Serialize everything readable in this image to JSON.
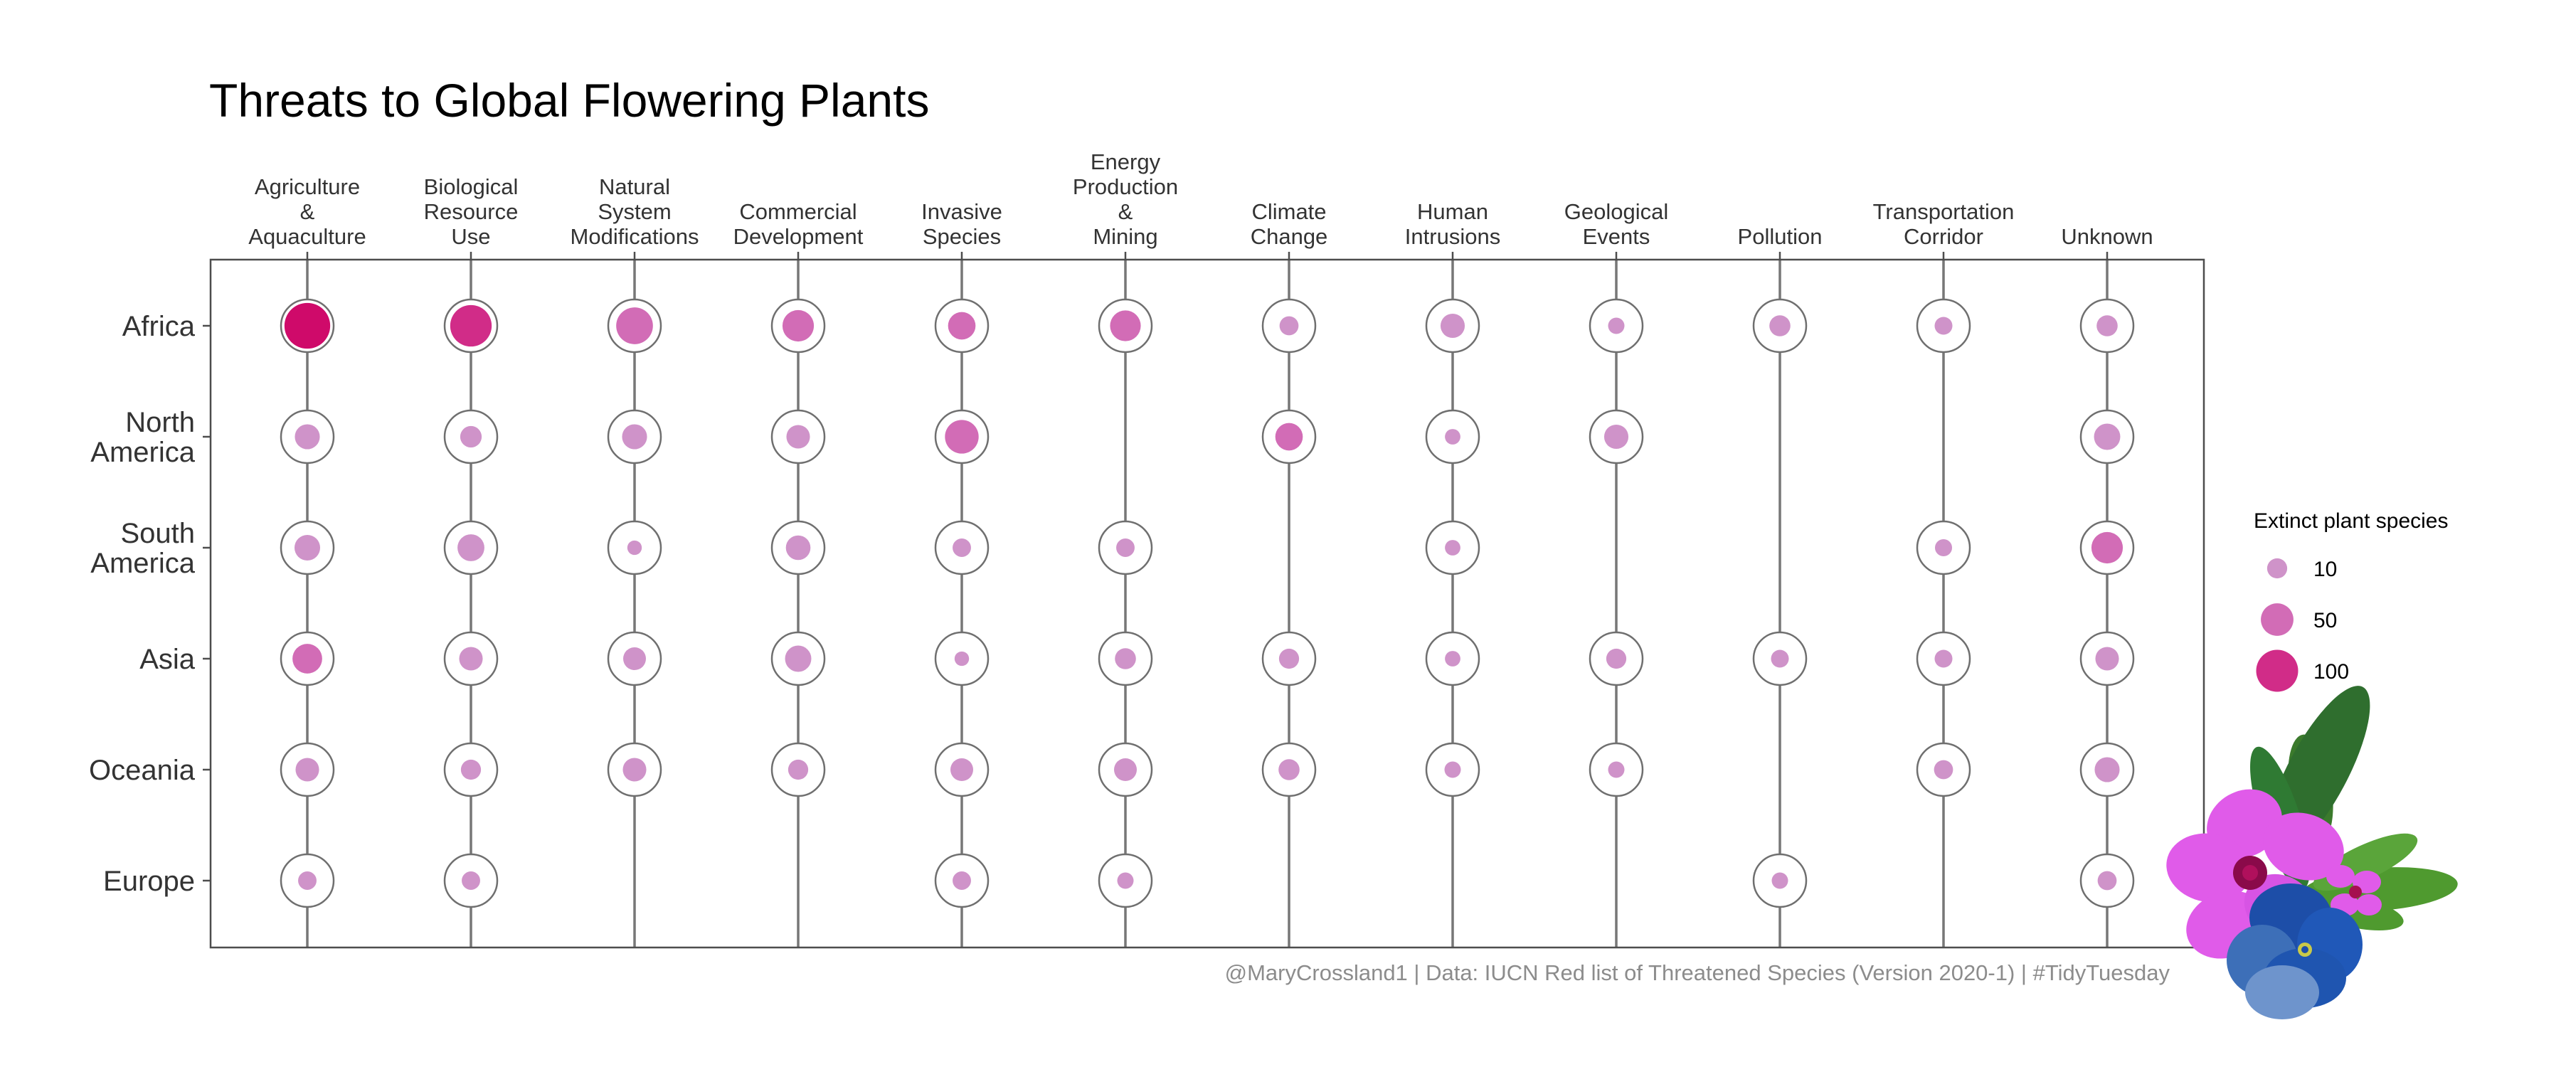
{
  "chart_data": {
    "type": "scatter",
    "title": "Threats to Global Flowering Plants",
    "categories": [
      [
        "Agriculture",
        "&",
        "Aquaculture"
      ],
      [
        "Biological",
        "Resource",
        "Use"
      ],
      [
        "Natural",
        "System",
        "Modifications"
      ],
      [
        "Commercial",
        "Development"
      ],
      [
        "Invasive",
        "Species"
      ],
      [
        "Energy",
        "Production",
        "&",
        "Mining"
      ],
      [
        "Climate",
        "Change"
      ],
      [
        "Human",
        "Intrusions"
      ],
      [
        "Geological",
        "Events"
      ],
      [
        "Pollution"
      ],
      [
        "Transportation",
        "Corridor"
      ],
      [
        "Unknown"
      ]
    ],
    "regions": [
      [
        "Africa"
      ],
      [
        "North",
        "America"
      ],
      [
        "South",
        "America"
      ],
      [
        "Asia"
      ],
      [
        "Oceania"
      ],
      [
        "Europe"
      ]
    ],
    "values": [
      [
        125,
        97,
        70,
        45,
        30,
        42,
        8,
        20,
        4,
        12,
        6,
        12
      ],
      [
        22,
        13,
        22,
        18,
        55,
        0,
        30,
        3,
        20,
        0,
        0,
        26
      ],
      [
        24,
        28,
        2,
        21,
        7,
        7,
        0,
        3,
        0,
        0,
        5,
        45
      ],
      [
        38,
        18,
        16,
        26,
        2,
        12,
        10,
        3,
        10,
        6,
        6,
        18
      ],
      [
        18,
        10,
        18,
        10,
        16,
        16,
        12,
        4,
        4,
        0,
        8,
        22
      ],
      [
        7,
        7,
        0,
        0,
        7,
        4,
        0,
        0,
        0,
        4,
        0,
        8
      ]
    ],
    "legend": {
      "title": "Extinct plant species",
      "entries": [
        10,
        50,
        100
      ],
      "placement": "right"
    },
    "colors": {
      "low": "#cf93c9",
      "mid": "#d26cb6",
      "high": "#d12c88",
      "max": "#cf0a6a",
      "ring": "#6f6f6f",
      "line": "#777777",
      "panel_border": "#4d4d4d"
    },
    "caption": "@MaryCrossland1 | Data: IUCN Red list of Threatened Species (Version 2020-1) | #TidyTuesday"
  }
}
